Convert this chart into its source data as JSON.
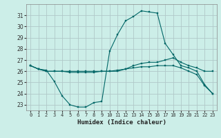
{
  "xlabel": "Humidex (Indice chaleur)",
  "bg_color": "#cceee8",
  "grid_color": "#b0c8c8",
  "line_color": "#006666",
  "x": [
    0,
    1,
    2,
    3,
    4,
    5,
    6,
    7,
    8,
    9,
    10,
    11,
    12,
    13,
    14,
    15,
    16,
    17,
    18,
    19,
    20,
    21,
    22,
    23
  ],
  "line1": [
    26.5,
    26.2,
    26.1,
    25.1,
    23.8,
    23.0,
    22.8,
    22.8,
    23.2,
    23.3,
    27.8,
    29.3,
    30.5,
    30.9,
    31.4,
    31.3,
    31.2,
    28.5,
    27.5,
    26.5,
    26.3,
    26.0,
    24.8,
    24.0
  ],
  "line2": [
    26.5,
    26.2,
    26.0,
    26.0,
    26.0,
    26.0,
    26.0,
    26.0,
    26.0,
    26.0,
    26.0,
    26.0,
    26.2,
    26.5,
    26.7,
    26.8,
    26.8,
    27.0,
    27.2,
    26.8,
    26.5,
    26.3,
    26.0,
    26.0
  ],
  "line3": [
    26.5,
    26.2,
    26.0,
    26.0,
    26.0,
    25.9,
    25.9,
    25.9,
    25.9,
    26.0,
    26.0,
    26.1,
    26.2,
    26.3,
    26.4,
    26.4,
    26.5,
    26.5,
    26.5,
    26.3,
    26.0,
    25.7,
    24.7,
    24.0
  ],
  "ylim": [
    22.5,
    32.0
  ],
  "yticks": [
    23,
    24,
    25,
    26,
    27,
    28,
    29,
    30,
    31
  ],
  "xlim": [
    -0.5,
    23.5
  ],
  "xticks": [
    0,
    1,
    2,
    3,
    4,
    5,
    6,
    7,
    8,
    9,
    10,
    11,
    12,
    13,
    14,
    15,
    16,
    17,
    18,
    19,
    20,
    21,
    22,
    23
  ]
}
